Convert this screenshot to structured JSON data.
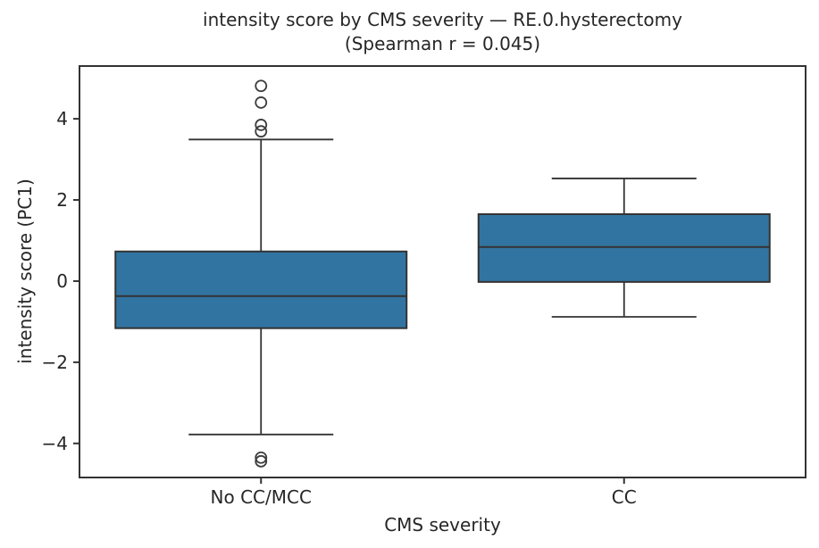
{
  "figure": {
    "title_line1": "intensity score by CMS severity — RE.0.hysterectomy",
    "title_line2": "(Spearman r = 0.045)"
  },
  "chart_data": {
    "type": "box",
    "title": "intensity score by CMS severity — RE.0.hysterectomy (Spearman r = 0.045)",
    "xlabel": "CMS severity",
    "ylabel": "intensity score (PC1)",
    "categories": [
      "No CC/MCC",
      "CC"
    ],
    "series": [
      {
        "name": "No CC/MCC",
        "whisker_low": -3.78,
        "q1": -1.16,
        "median": -0.37,
        "q3": 0.73,
        "whisker_high": 3.49,
        "outliers": [
          4.81,
          4.4,
          3.85,
          3.69,
          -4.35,
          -4.44
        ]
      },
      {
        "name": "CC",
        "whisker_low": -0.88,
        "q1": -0.02,
        "median": 0.84,
        "q3": 1.65,
        "whisker_high": 2.53,
        "outliers": []
      }
    ],
    "ylim": [
      -4.84,
      5.3
    ],
    "yticks": [
      -4,
      -2,
      0,
      2,
      4
    ],
    "grid": false,
    "legend": "none",
    "colors": {
      "box_fill": "#3274A1",
      "line_color": "#333333",
      "flier_edge": "#3d3d3d",
      "text_color": "#262626",
      "background": "#ffffff"
    }
  }
}
